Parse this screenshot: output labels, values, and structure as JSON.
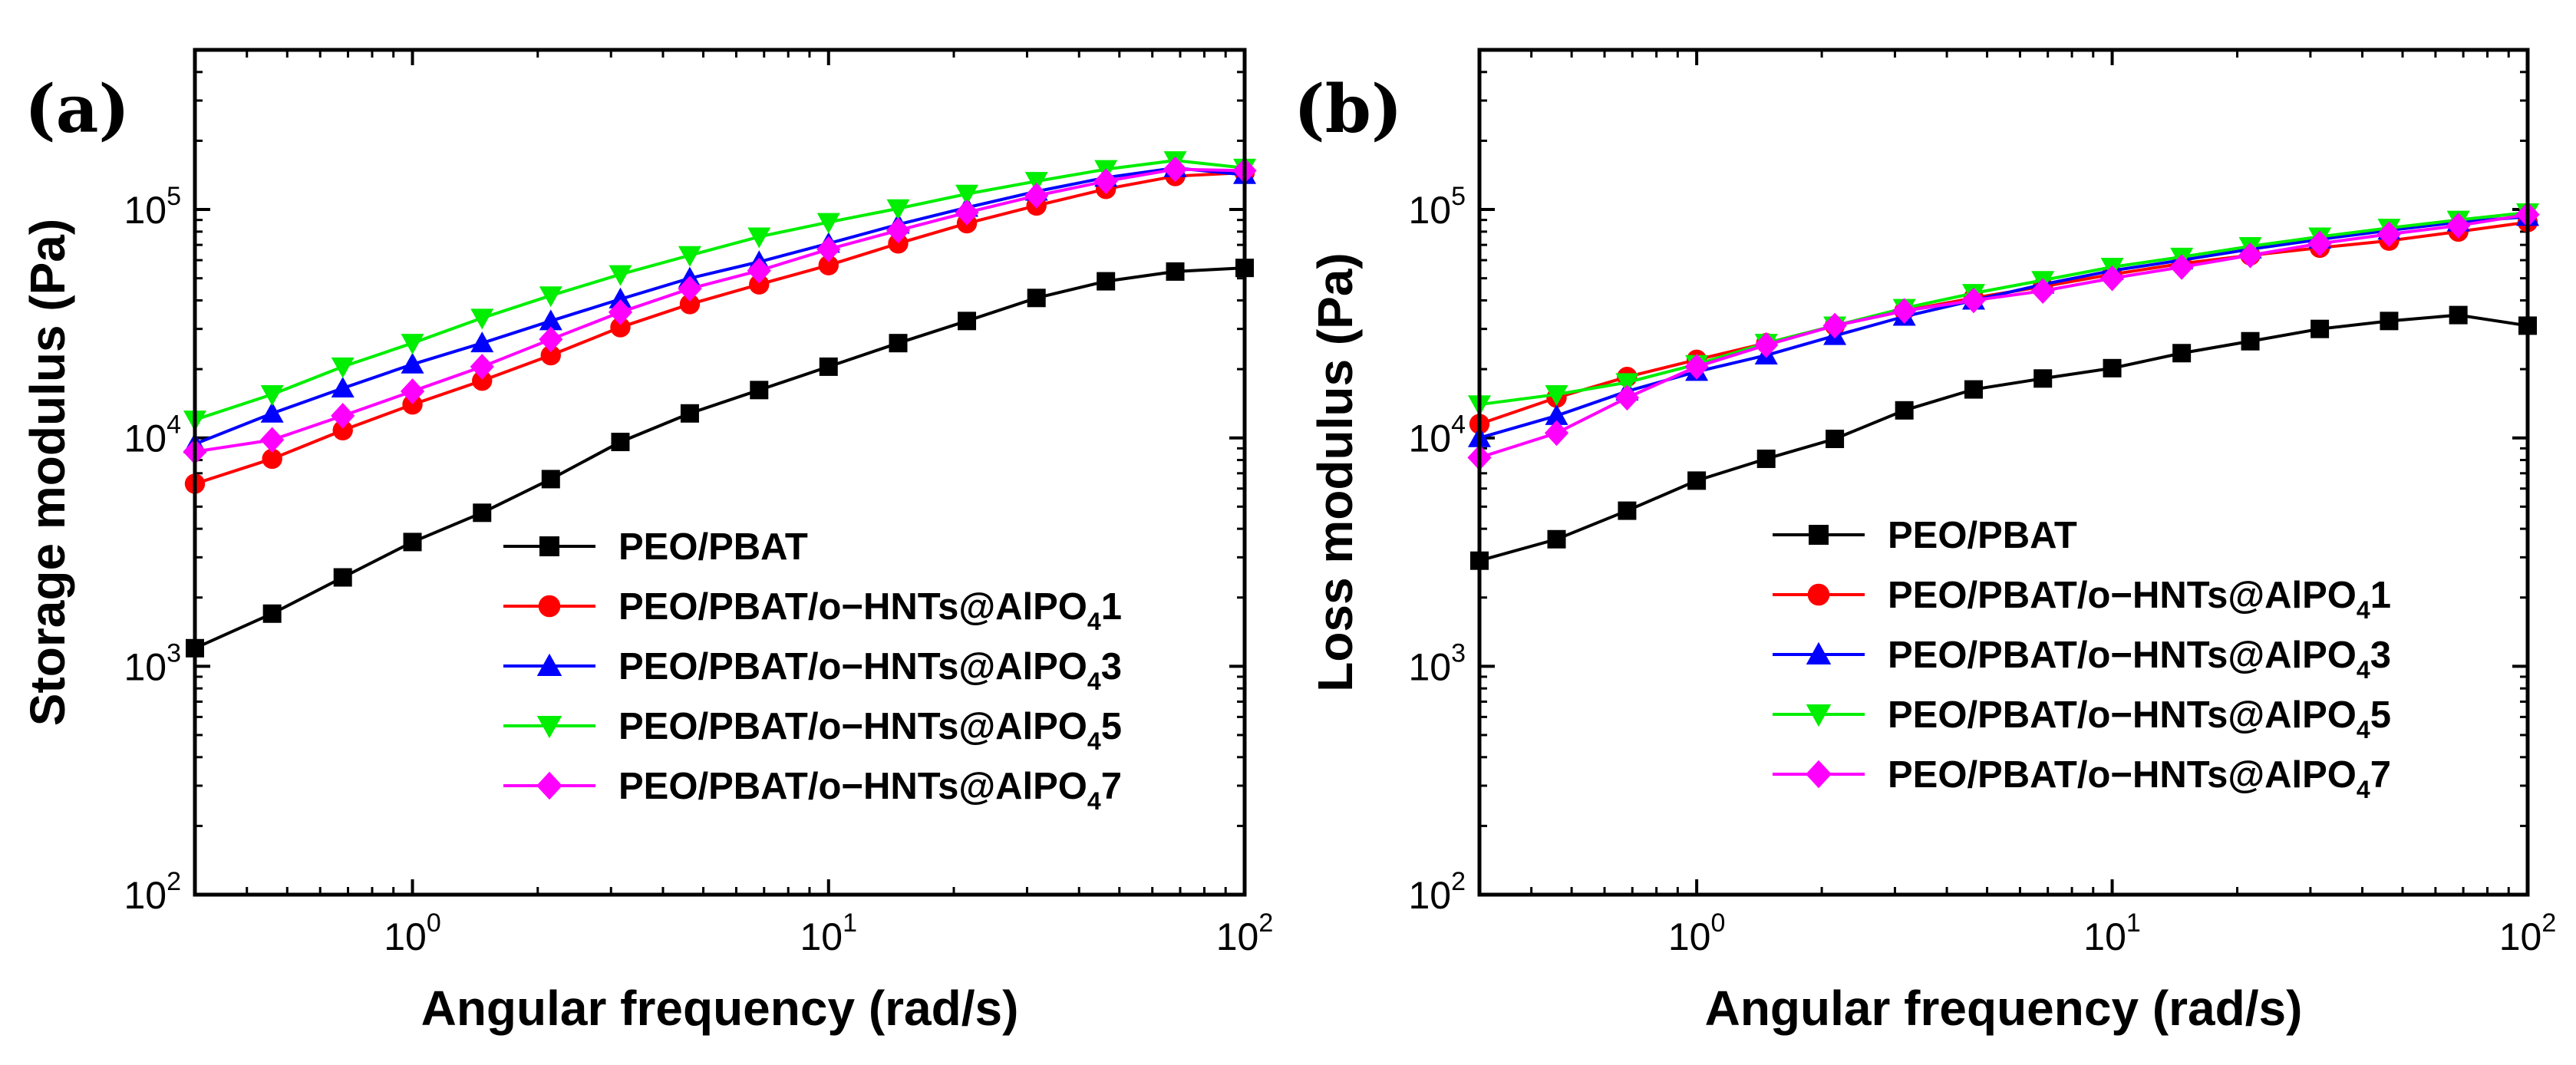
{
  "figure": {
    "series_styles": [
      {
        "name": "PEO/PBAT",
        "color": "#000000",
        "marker": "square"
      },
      {
        "name": "PEO/PBAT/o-HNTs@AlPO41",
        "color": "#ff0000",
        "marker": "circle"
      },
      {
        "name": "PEO/PBAT/o-HNTs@AlPO43",
        "color": "#0000ff",
        "marker": "triangle-up"
      },
      {
        "name": "PEO/PBAT/o-HNTs@AlPO45",
        "color": "#00ee00",
        "marker": "triangle-down"
      },
      {
        "name": "PEO/PBAT/o-HNTs@AlPO47",
        "color": "#ff00ff",
        "marker": "diamond"
      }
    ]
  },
  "chart_data": [
    {
      "type": "line",
      "panel_label": "(a)",
      "xlabel": "Angular frequency (rad/s)",
      "ylabel": "Storage modulus (Pa)",
      "xscale": "log",
      "yscale": "log",
      "xlim": [
        0.3,
        100
      ],
      "ylim": [
        100,
        500000
      ],
      "x_ticks": [
        {
          "base": "10",
          "exp": "0",
          "value": 1
        },
        {
          "base": "10",
          "exp": "1",
          "value": 10
        },
        {
          "base": "10",
          "exp": "2",
          "value": 100
        }
      ],
      "y_ticks": [
        {
          "base": "10",
          "exp": "2",
          "value": 100
        },
        {
          "base": "10",
          "exp": "3",
          "value": 1000
        },
        {
          "base": "10",
          "exp": "4",
          "value": 10000
        },
        {
          "base": "10",
          "exp": "5",
          "value": 100000
        }
      ],
      "legend_position": "center-right",
      "legend": [
        {
          "main": "PEO/PBAT",
          "sub": "",
          "tail": ""
        },
        {
          "main": "PEO/PBAT/o−HNTs@AlPO",
          "sub": "4",
          "tail": "1"
        },
        {
          "main": "PEO/PBAT/o−HNTs@AlPO",
          "sub": "4",
          "tail": "3"
        },
        {
          "main": "PEO/PBAT/o−HNTs@AlPO",
          "sub": "4",
          "tail": "5"
        },
        {
          "main": "PEO/PBAT/o−HNTs@AlPO",
          "sub": "4",
          "tail": "7"
        }
      ],
      "x": [
        0.3,
        0.46,
        0.68,
        1.0,
        1.47,
        2.15,
        3.16,
        4.64,
        6.81,
        10.0,
        14.7,
        21.5,
        31.6,
        46.4,
        68.1,
        100.0
      ],
      "series": [
        {
          "name": "PEO/PBAT",
          "values": [
            1200,
            1700,
            2450,
            3500,
            4700,
            6600,
            9600,
            12800,
            16200,
            20500,
            26000,
            32500,
            41000,
            48500,
            53500,
            55500
          ]
        },
        {
          "name": "PEO/PBAT/o-HNTs@AlPO41",
          "values": [
            6300,
            8100,
            10800,
            14000,
            17800,
            23000,
            30500,
            38500,
            47000,
            57000,
            71000,
            87000,
            104000,
            123000,
            140000,
            145000
          ]
        },
        {
          "name": "PEO/PBAT/o-HNTs@AlPO43",
          "values": [
            9400,
            12800,
            16500,
            21000,
            26000,
            32500,
            40500,
            50000,
            59000,
            71000,
            86000,
            102000,
            120000,
            138000,
            152000,
            142000
          ]
        },
        {
          "name": "PEO/PBAT/o-HNTs@AlPO45",
          "values": [
            12000,
            15500,
            20500,
            26000,
            33500,
            42000,
            52000,
            63000,
            76000,
            88000,
            101000,
            117000,
            133000,
            150000,
            164000,
            152000
          ]
        },
        {
          "name": "PEO/PBAT/o-HNTs@AlPO47",
          "values": [
            8700,
            9800,
            12500,
            16000,
            20500,
            27000,
            35500,
            45000,
            54000,
            67000,
            81000,
            97000,
            115000,
            133000,
            150000,
            148000
          ]
        }
      ]
    },
    {
      "type": "line",
      "panel_label": "(b)",
      "xlabel": "Angular frequency (rad/s)",
      "ylabel": "Loss modulus (Pa)",
      "xscale": "log",
      "yscale": "log",
      "xlim": [
        0.3,
        100
      ],
      "ylim": [
        100,
        500000
      ],
      "x_ticks": [
        {
          "base": "10",
          "exp": "0",
          "value": 1
        },
        {
          "base": "10",
          "exp": "1",
          "value": 10
        },
        {
          "base": "10",
          "exp": "2",
          "value": 100
        }
      ],
      "y_ticks": [
        {
          "base": "10",
          "exp": "2",
          "value": 100
        },
        {
          "base": "10",
          "exp": "3",
          "value": 1000
        },
        {
          "base": "10",
          "exp": "4",
          "value": 10000
        },
        {
          "base": "10",
          "exp": "5",
          "value": 100000
        }
      ],
      "legend_position": "center-right",
      "legend": [
        {
          "main": "PEO/PBAT",
          "sub": "",
          "tail": ""
        },
        {
          "main": "PEO/PBAT/o−HNTs@AlPO",
          "sub": "4",
          "tail": "1"
        },
        {
          "main": "PEO/PBAT/o−HNTs@AlPO",
          "sub": "4",
          "tail": "3"
        },
        {
          "main": "PEO/PBAT/o−HNTs@AlPO",
          "sub": "4",
          "tail": "5"
        },
        {
          "main": "PEO/PBAT/o−HNTs@AlPO",
          "sub": "4",
          "tail": "7"
        }
      ],
      "x": [
        0.3,
        0.46,
        0.68,
        1.0,
        1.47,
        2.15,
        3.16,
        4.64,
        6.81,
        10.0,
        14.7,
        21.5,
        31.6,
        46.4,
        68.1,
        100.0
      ],
      "series": [
        {
          "name": "PEO/PBAT",
          "values": [
            2900,
            3600,
            4800,
            6500,
            8100,
            9900,
            13200,
            16300,
            18200,
            20200,
            23500,
            26500,
            30000,
            32500,
            34500,
            31000
          ]
        },
        {
          "name": "PEO/PBAT/o-HNTs@AlPO41",
          "values": [
            11500,
            15000,
            18500,
            22000,
            26000,
            31000,
            36000,
            41000,
            46000,
            52000,
            58000,
            63000,
            68000,
            73000,
            80000,
            88000
          ]
        },
        {
          "name": "PEO/PBAT/o-HNTs@AlPO43",
          "values": [
            10000,
            12500,
            16000,
            19500,
            23000,
            28000,
            34000,
            40000,
            47000,
            54000,
            60000,
            67000,
            74000,
            81000,
            88000,
            93000
          ]
        },
        {
          "name": "PEO/PBAT/o-HNTs@AlPO45",
          "values": [
            14000,
            15500,
            17500,
            21000,
            26000,
            31000,
            37000,
            43000,
            49000,
            56000,
            62000,
            69000,
            76000,
            83000,
            90000,
            97000
          ]
        },
        {
          "name": "PEO/PBAT/o-HNTs@AlPO47",
          "values": [
            8200,
            10500,
            15000,
            20500,
            25500,
            31000,
            36000,
            40000,
            44000,
            50000,
            56000,
            63000,
            71000,
            78000,
            85000,
            95000
          ]
        }
      ]
    }
  ]
}
